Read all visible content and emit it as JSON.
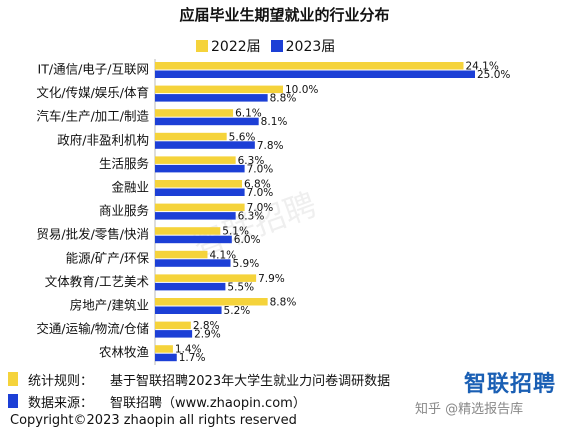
{
  "chart_data": {
    "type": "bar",
    "orientation": "horizontal",
    "title": "应届毕业生期望就业的行业分布",
    "categories": [
      "IT/通信/电子/互联网",
      "文化/传媒/娱乐/体育",
      "汽车/生产/加工/制造",
      "政府/非盈利机构",
      "生活服务",
      "金融业",
      "商业服务",
      "贸易/批发/零售/快消",
      "能源/矿产/环保",
      "文体教育/工艺美术",
      "房地产/建筑业",
      "交通/运输/物流/仓储",
      "农林牧渔"
    ],
    "series": [
      {
        "name": "2022届",
        "color": "#f5d33b",
        "values": [
          24.1,
          10.0,
          6.1,
          5.6,
          6.3,
          6.8,
          7.0,
          5.1,
          4.1,
          7.9,
          8.8,
          2.8,
          1.4
        ],
        "labels": [
          "24.1%",
          "10.0%",
          "6.1%",
          "5.6%",
          "6.3%",
          "6.8%",
          "7.0%",
          "5.1%",
          "4.1%",
          "7.9%",
          "8.8%",
          "2.8%",
          "1.4%"
        ]
      },
      {
        "name": "2023届",
        "color": "#1c3fd6",
        "values": [
          25.0,
          8.8,
          8.1,
          7.8,
          7.0,
          7.0,
          6.3,
          6.0,
          5.9,
          5.5,
          5.2,
          2.9,
          1.7
        ],
        "labels": [
          "25.0%",
          "8.8%",
          "8.1%",
          "7.8%",
          "7.0%",
          "7.0%",
          "6.3%",
          "6.0%",
          "5.9%",
          "5.5%",
          "5.2%",
          "2.9%",
          "1.7%"
        ]
      }
    ],
    "xlim": [
      0,
      25
    ],
    "grid": false,
    "legend": "top"
  },
  "notes": [
    {
      "label": "统计规则：",
      "text": "基于智联招聘2023年大学生就业力问卷调研数据",
      "color": "#f5d33b"
    },
    {
      "label": "数据来源：",
      "text": "智联招聘（www.zhaopin.com）",
      "color": "#1c3fd6"
    }
  ],
  "copyright": "Copyright©2023 zhaopin all rights reserved",
  "logo": "智联招聘",
  "watermarks": {
    "center": "智联招聘",
    "platform": "知乎 @精选报告库"
  }
}
